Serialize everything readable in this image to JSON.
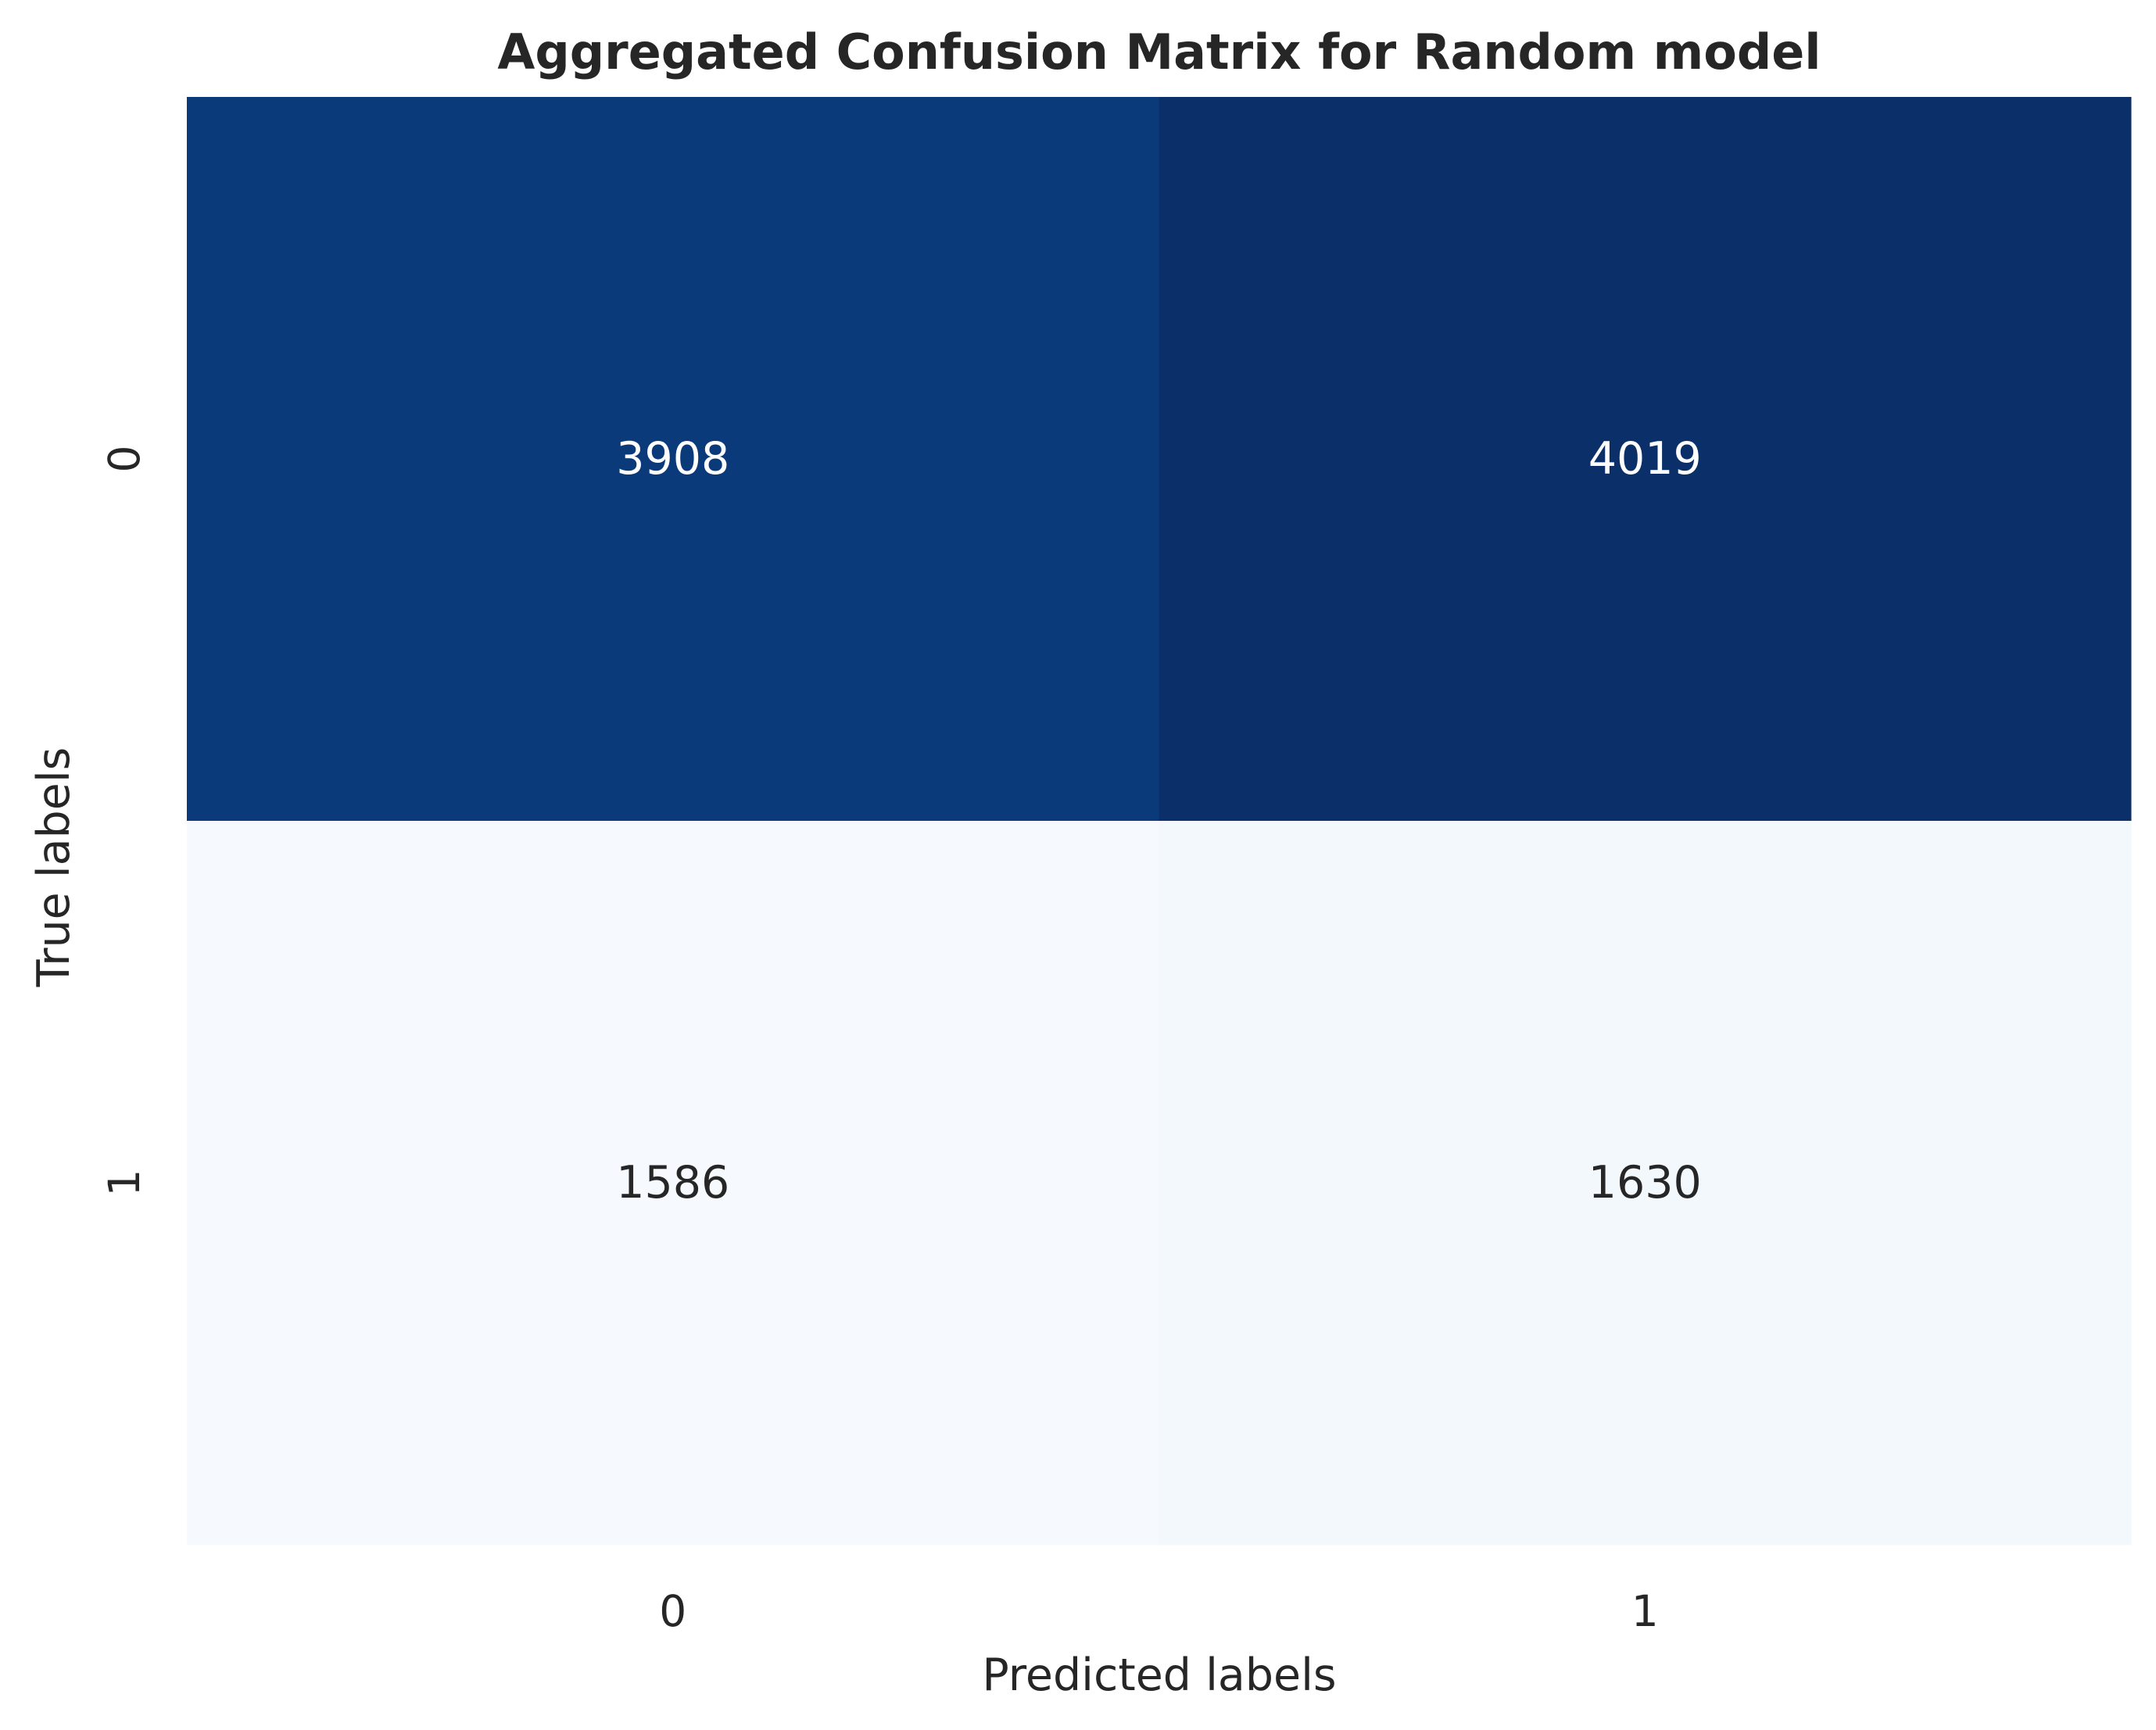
{
  "chart_data": {
    "type": "heatmap",
    "title": "Aggregated Confusion Matrix for Random model",
    "xlabel": "Predicted labels",
    "ylabel": "True labels",
    "x_categories": [
      "0",
      "1"
    ],
    "y_categories": [
      "0",
      "1"
    ],
    "values": [
      [
        3908,
        4019
      ],
      [
        1586,
        1630
      ]
    ],
    "colormap": "Blues",
    "colorbar": false,
    "grid": false,
    "colors": {
      "cell_0_0": "#0a3a7a",
      "cell_0_1": "#0a2f69",
      "cell_1_0": "#f6f9fe",
      "cell_1_1": "#f3f8fd",
      "dark_text": "#262626",
      "light_text": "#ffffff"
    }
  }
}
